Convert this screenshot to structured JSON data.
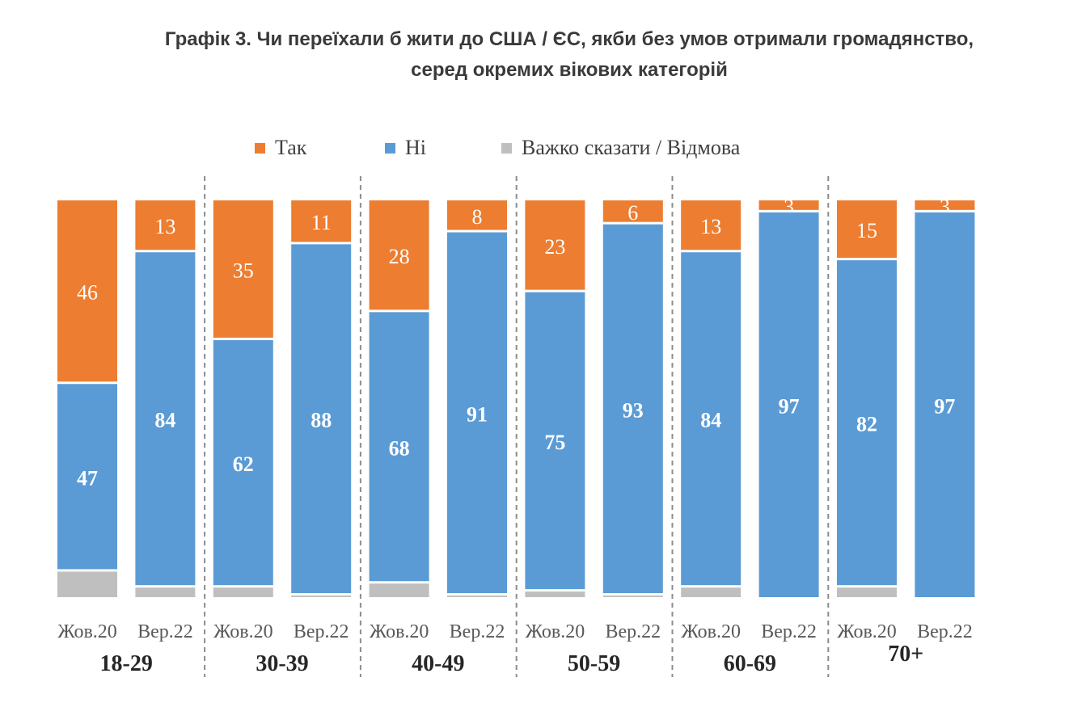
{
  "title_lines": [
    "Графік 3. Чи переїхали б жити до США / ЄС, якби без умов отримали громадянство,",
    "серед окремих вікових категорій"
  ],
  "legend": [
    {
      "label": "Так",
      "color": "#ED7D31"
    },
    {
      "label": "Ні",
      "color": "#5B9BD5"
    },
    {
      "label": "Важко сказати / Відмова",
      "color": "#BFBFBF"
    }
  ],
  "chart_data": {
    "type": "bar",
    "stacked": true,
    "percent_scale": true,
    "ylim": [
      0,
      100
    ],
    "grid": false,
    "legend_placement": "top",
    "categories": [
      "Жов.20",
      "Вер.22",
      "Жов.20",
      "Вер.22",
      "Жов.20",
      "Вер.22",
      "Жов.20",
      "Вер.22",
      "Жов.20",
      "Вер.22",
      "Жов.20",
      "Вер.22"
    ],
    "groups": [
      "18-29",
      "30-39",
      "40-49",
      "50-59",
      "60-69",
      "70+"
    ],
    "series": [
      {
        "name": "Так",
        "color": "#ED7D31",
        "values": [
          46,
          13,
          35,
          11,
          28,
          8,
          23,
          6,
          13,
          3,
          15,
          3
        ]
      },
      {
        "name": "Ні",
        "color": "#5B9BD5",
        "values": [
          47,
          84,
          62,
          88,
          68,
          91,
          75,
          93,
          84,
          97,
          82,
          97
        ]
      },
      {
        "name": "Важко сказати / Відмова",
        "color": "#BFBFBF",
        "values": [
          7,
          3,
          3,
          1,
          4,
          1,
          2,
          1,
          3,
          0,
          3,
          0
        ]
      }
    ]
  }
}
